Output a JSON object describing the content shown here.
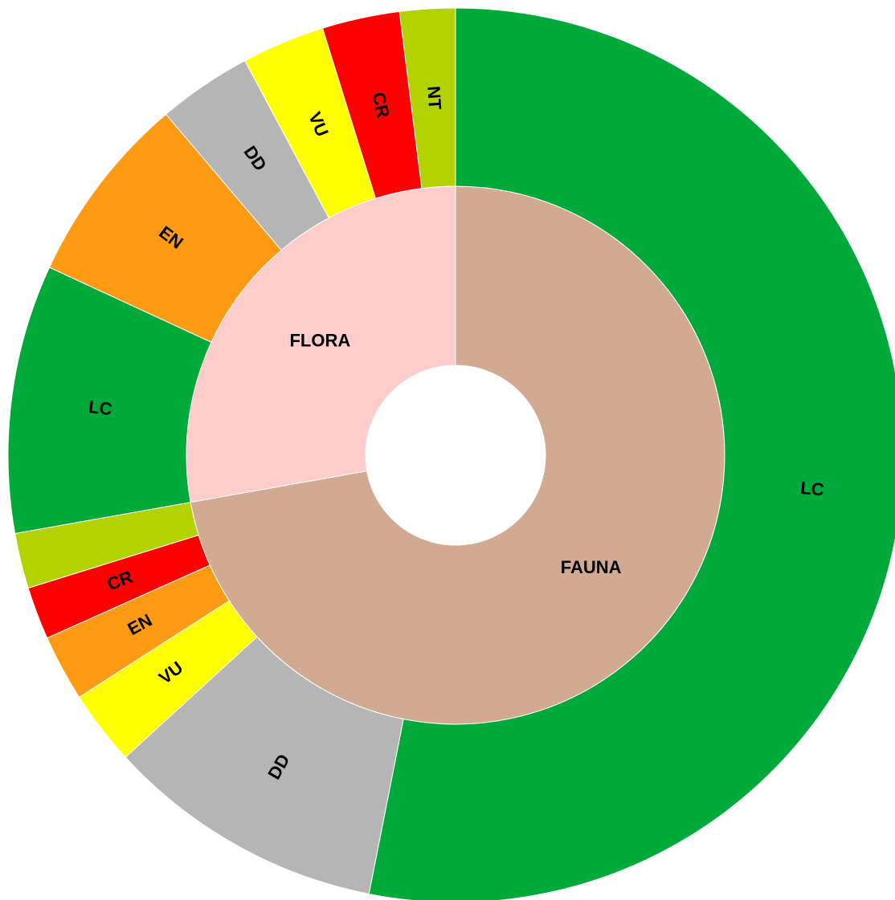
{
  "chart_data": {
    "type": "sunburst",
    "groups": [
      {
        "name": "FAUNA",
        "value": 72.2,
        "color": "#d2aa92",
        "children": [
          {
            "name": "LC",
            "value": 53.1,
            "color": "#00aa3a"
          },
          {
            "name": "DD",
            "value": 10.1,
            "color": "#b5b5b5"
          },
          {
            "name": "VU",
            "value": 2.7,
            "color": "#ffff00"
          },
          {
            "name": "EN",
            "value": 2.4,
            "color": "#ff9a14"
          },
          {
            "name": "CR",
            "value": 1.9,
            "color": "#ff0000"
          },
          {
            "name": null,
            "value": 2.0,
            "color": "#b3d300"
          }
        ]
      },
      {
        "name": "FLORA",
        "value": 27.8,
        "color": "#ffcccc",
        "children": [
          {
            "name": "LC",
            "value": 9.7,
            "color": "#00aa3a"
          },
          {
            "name": "EN",
            "value": 6.9,
            "color": "#ff9a14"
          },
          {
            "name": "DD",
            "value": 3.4,
            "color": "#b5b5b5"
          },
          {
            "name": "VU",
            "value": 3.0,
            "color": "#ffff00"
          },
          {
            "name": "CR",
            "value": 2.8,
            "color": "#ff0000"
          },
          {
            "name": "NT",
            "value": 2.0,
            "color": "#b3d300"
          }
        ]
      }
    ]
  }
}
